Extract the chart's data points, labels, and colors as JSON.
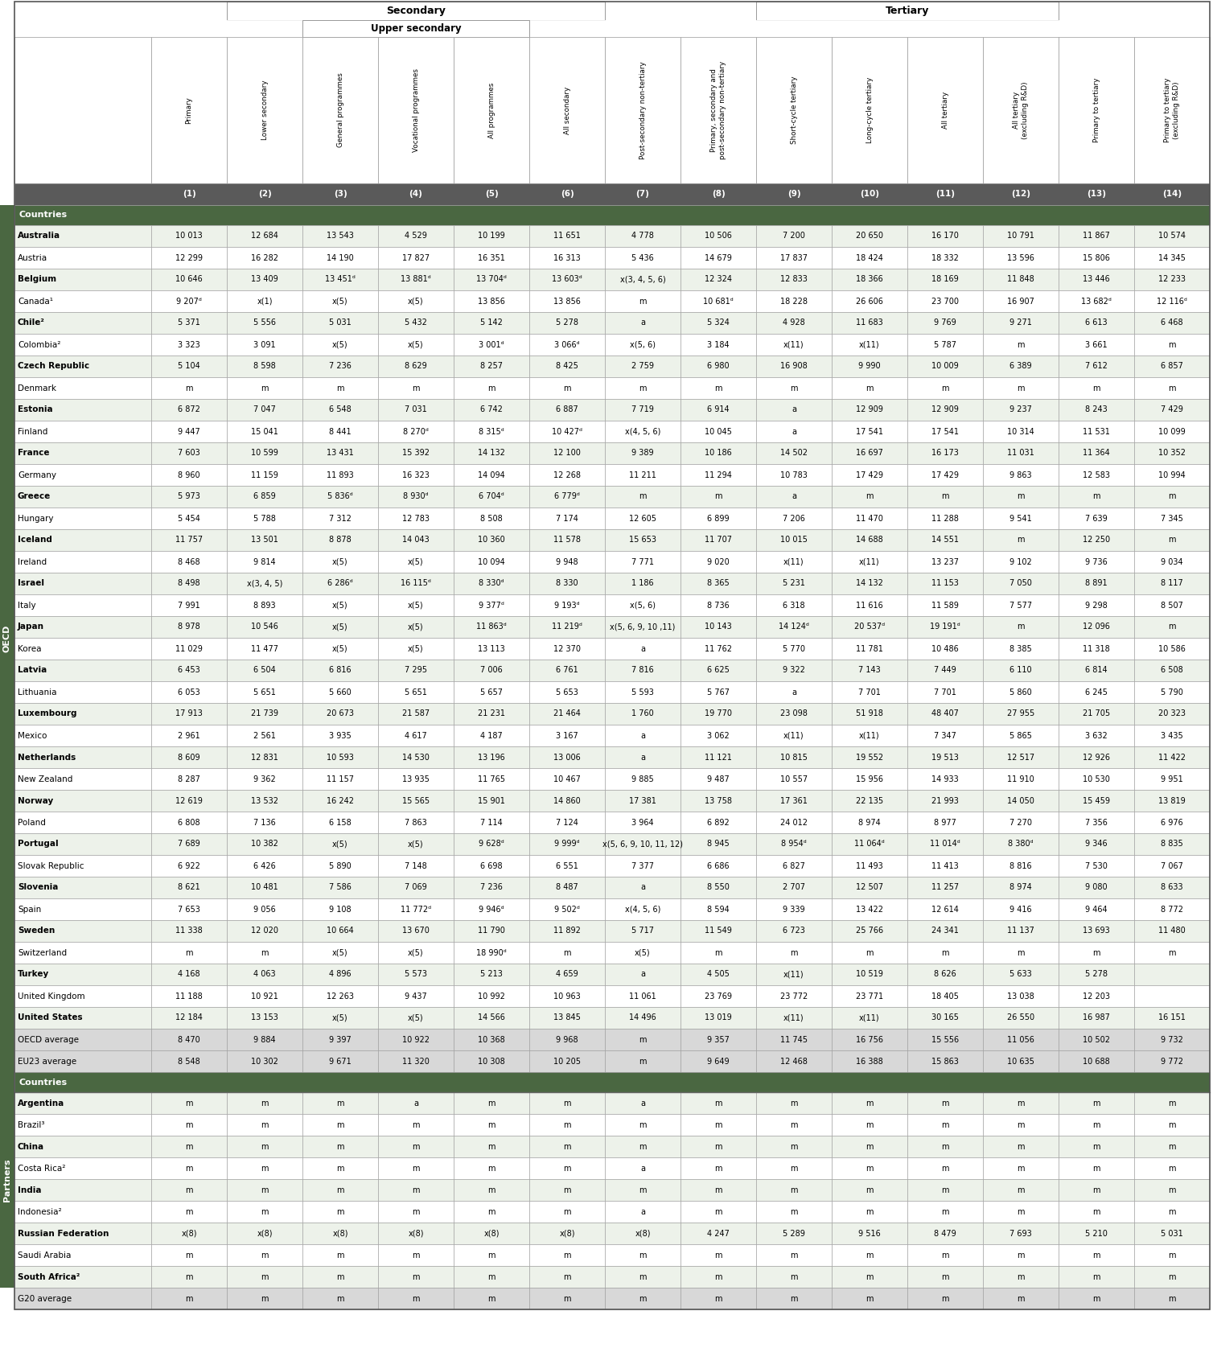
{
  "col_headers_rotated": [
    "Primary",
    "Lower secondary",
    "General programmes",
    "Vocational programmes",
    "All programmes",
    "All secondary",
    "Post-secondary non-tertiary",
    "Primary, secondary and\npost-secondary non-tertiary",
    "Short-cycle tertiary",
    "Long-cycle tertiary",
    "All tertiary",
    "All tertiary\n(excluding R&D)",
    "Primary to tertiary",
    "Primary to tertiary\n(excluding R&D)"
  ],
  "col_nums": [
    "(1)",
    "(2)",
    "(3)",
    "(4)",
    "(5)",
    "(6)",
    "(7)",
    "(8)",
    "(9)",
    "(10)",
    "(11)",
    "(12)",
    "(13)",
    "(14)"
  ],
  "oecd_rows": [
    [
      "Australia",
      "10 013",
      "12 684",
      "13 543",
      "4 529",
      "10 199",
      "11 651",
      "4 778",
      "10 506",
      "7 200",
      "20 650",
      "16 170",
      "10 791",
      "11 867",
      "10 574"
    ],
    [
      "Austria",
      "12 299",
      "16 282",
      "14 190",
      "17 827",
      "16 351",
      "16 313",
      "5 436",
      "14 679",
      "17 837",
      "18 424",
      "18 332",
      "13 596",
      "15 806",
      "14 345"
    ],
    [
      "Belgium",
      "10 646",
      "13 409",
      "13 451ᵈ",
      "13 881ᵈ",
      "13 704ᵈ",
      "13 603ᵈ",
      "x(3, 4, 5, 6)",
      "12 324",
      "12 833",
      "18 366",
      "18 169",
      "11 848",
      "13 446",
      "12 233"
    ],
    [
      "Canada¹",
      "9 207ᵈ",
      "x(1)",
      "x(5)",
      "x(5)",
      "13 856",
      "13 856",
      "m",
      "10 681ᵈ",
      "18 228",
      "26 606",
      "23 700",
      "16 907",
      "13 682ᵈ",
      "12 116ᵈ"
    ],
    [
      "Chile²",
      "5 371",
      "5 556",
      "5 031",
      "5 432",
      "5 142",
      "5 278",
      "a",
      "5 324",
      "4 928",
      "11 683",
      "9 769",
      "9 271",
      "6 613",
      "6 468"
    ],
    [
      "Colombia²",
      "3 323",
      "3 091",
      "x(5)",
      "x(5)",
      "3 001ᵈ",
      "3 066ᵈ",
      "x(5, 6)",
      "3 184",
      "x(11)",
      "x(11)",
      "5 787",
      "m",
      "3 661",
      "m"
    ],
    [
      "Czech Republic",
      "5 104",
      "8 598",
      "7 236",
      "8 629",
      "8 257",
      "8 425",
      "2 759",
      "6 980",
      "16 908",
      "9 990",
      "10 009",
      "6 389",
      "7 612",
      "6 857"
    ],
    [
      "Denmark",
      "m",
      "m",
      "m",
      "m",
      "m",
      "m",
      "m",
      "m",
      "m",
      "m",
      "m",
      "m",
      "m",
      "m"
    ],
    [
      "Estonia",
      "6 872",
      "7 047",
      "6 548",
      "7 031",
      "6 742",
      "6 887",
      "7 719",
      "6 914",
      "a",
      "12 909",
      "12 909",
      "9 237",
      "8 243",
      "7 429"
    ],
    [
      "Finland",
      "9 447",
      "15 041",
      "8 441",
      "8 270ᵈ",
      "8 315ᵈ",
      "10 427ᵈ",
      "x(4, 5, 6)",
      "10 045",
      "a",
      "17 541",
      "17 541",
      "10 314",
      "11 531",
      "10 099"
    ],
    [
      "France",
      "7 603",
      "10 599",
      "13 431",
      "15 392",
      "14 132",
      "12 100",
      "9 389",
      "10 186",
      "14 502",
      "16 697",
      "16 173",
      "11 031",
      "11 364",
      "10 352"
    ],
    [
      "Germany",
      "8 960",
      "11 159",
      "11 893",
      "16 323",
      "14 094",
      "12 268",
      "11 211",
      "11 294",
      "10 783",
      "17 429",
      "17 429",
      "9 863",
      "12 583",
      "10 994"
    ],
    [
      "Greece",
      "5 973",
      "6 859",
      "5 836ᵈ",
      "8 930ᵈ",
      "6 704ᵈ",
      "6 779ᵈ",
      "m",
      "m",
      "a",
      "m",
      "m",
      "m",
      "m",
      "m"
    ],
    [
      "Hungary",
      "5 454",
      "5 788",
      "7 312",
      "12 783",
      "8 508",
      "7 174",
      "12 605",
      "6 899",
      "7 206",
      "11 470",
      "11 288",
      "9 541",
      "7 639",
      "7 345"
    ],
    [
      "Iceland",
      "11 757",
      "13 501",
      "8 878",
      "14 043",
      "10 360",
      "11 578",
      "15 653",
      "11 707",
      "10 015",
      "14 688",
      "14 551",
      "m",
      "12 250",
      "m"
    ],
    [
      "Ireland",
      "8 468",
      "9 814",
      "x(5)",
      "x(5)",
      "10 094",
      "9 948",
      "7 771",
      "9 020",
      "x(11)",
      "x(11)",
      "13 237",
      "9 102",
      "9 736",
      "9 034"
    ],
    [
      "Israel",
      "8 498",
      "x(3, 4, 5)",
      "6 286ᵈ",
      "16 115ᵈ",
      "8 330ᵈ",
      "8 330",
      "1 186",
      "8 365",
      "5 231",
      "14 132",
      "11 153",
      "7 050",
      "8 891",
      "8 117"
    ],
    [
      "Italy",
      "7 991",
      "8 893",
      "x(5)",
      "x(5)",
      "9 377ᵈ",
      "9 193ᵈ",
      "x(5, 6)",
      "8 736",
      "6 318",
      "11 616",
      "11 589",
      "7 577",
      "9 298",
      "8 507"
    ],
    [
      "Japan",
      "8 978",
      "10 546",
      "x(5)",
      "x(5)",
      "11 863ᵈ",
      "11 219ᵈ",
      "x(5, 6, 9, 10 ,11)",
      "10 143",
      "14 124ᵈ",
      "20 537ᵈ",
      "19 191ᵈ",
      "m",
      "12 096",
      "m"
    ],
    [
      "Korea",
      "11 029",
      "11 477",
      "x(5)",
      "x(5)",
      "13 113",
      "12 370",
      "a",
      "11 762",
      "5 770",
      "11 781",
      "10 486",
      "8 385",
      "11 318",
      "10 586"
    ],
    [
      "Latvia",
      "6 453",
      "6 504",
      "6 816",
      "7 295",
      "7 006",
      "6 761",
      "7 816",
      "6 625",
      "9 322",
      "7 143",
      "7 449",
      "6 110",
      "6 814",
      "6 508"
    ],
    [
      "Lithuania",
      "6 053",
      "5 651",
      "5 660",
      "5 651",
      "5 657",
      "5 653",
      "5 593",
      "5 767",
      "a",
      "7 701",
      "7 701",
      "5 860",
      "6 245",
      "5 790"
    ],
    [
      "Luxembourg",
      "17 913",
      "21 739",
      "20 673",
      "21 587",
      "21 231",
      "21 464",
      "1 760",
      "19 770",
      "23 098",
      "51 918",
      "48 407",
      "27 955",
      "21 705",
      "20 323"
    ],
    [
      "Mexico",
      "2 961",
      "2 561",
      "3 935",
      "4 617",
      "4 187",
      "3 167",
      "a",
      "3 062",
      "x(11)",
      "x(11)",
      "7 347",
      "5 865",
      "3 632",
      "3 435"
    ],
    [
      "Netherlands",
      "8 609",
      "12 831",
      "10 593",
      "14 530",
      "13 196",
      "13 006",
      "a",
      "11 121",
      "10 815",
      "19 552",
      "19 513",
      "12 517",
      "12 926",
      "11 422"
    ],
    [
      "New Zealand",
      "8 287",
      "9 362",
      "11 157",
      "13 935",
      "11 765",
      "10 467",
      "9 885",
      "9 487",
      "10 557",
      "15 956",
      "14 933",
      "11 910",
      "10 530",
      "9 951"
    ],
    [
      "Norway",
      "12 619",
      "13 532",
      "16 242",
      "15 565",
      "15 901",
      "14 860",
      "17 381",
      "13 758",
      "17 361",
      "22 135",
      "21 993",
      "14 050",
      "15 459",
      "13 819"
    ],
    [
      "Poland",
      "6 808",
      "7 136",
      "6 158",
      "7 863",
      "7 114",
      "7 124",
      "3 964",
      "6 892",
      "24 012",
      "8 974",
      "8 977",
      "7 270",
      "7 356",
      "6 976"
    ],
    [
      "Portugal",
      "7 689",
      "10 382",
      "x(5)",
      "x(5)",
      "9 628ᵈ",
      "9 999ᵈ",
      "x(5, 6, 9, 10, 11, 12)",
      "8 945",
      "8 954ᵈ",
      "11 064ᵈ",
      "11 014ᵈ",
      "8 380ᵈ",
      "9 346",
      "8 835"
    ],
    [
      "Slovak Republic",
      "6 922",
      "6 426",
      "5 890",
      "7 148",
      "6 698",
      "6 551",
      "7 377",
      "6 686",
      "6 827",
      "11 493",
      "11 413",
      "8 816",
      "7 530",
      "7 067"
    ],
    [
      "Slovenia",
      "8 621",
      "10 481",
      "7 586",
      "7 069",
      "7 236",
      "8 487",
      "a",
      "8 550",
      "2 707",
      "12 507",
      "11 257",
      "8 974",
      "9 080",
      "8 633"
    ],
    [
      "Spain",
      "7 653",
      "9 056",
      "9 108",
      "11 772ᵈ",
      "9 946ᵈ",
      "9 502ᵈ",
      "x(4, 5, 6)",
      "8 594",
      "9 339",
      "13 422",
      "12 614",
      "9 416",
      "9 464",
      "8 772"
    ],
    [
      "Sweden",
      "11 338",
      "12 020",
      "10 664",
      "13 670",
      "11 790",
      "11 892",
      "5 717",
      "11 549",
      "6 723",
      "25 766",
      "24 341",
      "11 137",
      "13 693",
      "11 480"
    ],
    [
      "Switzerland",
      "m",
      "m",
      "x(5)",
      "x(5)",
      "18 990ᵈ",
      "m",
      "x(5)",
      "m",
      "m",
      "m",
      "m",
      "m",
      "m",
      "m"
    ],
    [
      "Turkey",
      "4 168",
      "4 063",
      "4 896",
      "5 573",
      "5 213",
      "4 659",
      "a",
      "4 505",
      "x(11)",
      "10 519",
      "8 626",
      "5 633",
      "5 278",
      ""
    ],
    [
      "United Kingdom",
      "11 188",
      "10 921",
      "12 263",
      "9 437",
      "10 992",
      "10 963",
      "11 061",
      "23 769",
      "23 772",
      "23 771",
      "18 405",
      "13 038",
      "12 203",
      ""
    ],
    [
      "United States",
      "12 184",
      "13 153",
      "x(5)",
      "x(5)",
      "14 566",
      "13 845",
      "14 496",
      "13 019",
      "x(11)",
      "x(11)",
      "30 165",
      "26 550",
      "16 987",
      "16 151"
    ]
  ],
  "avg_rows": [
    [
      "OECD average",
      "8 470",
      "9 884",
      "9 397",
      "10 922",
      "10 368",
      "9 968",
      "m",
      "9 357",
      "11 745",
      "16 756",
      "15 556",
      "11 056",
      "10 502",
      "9 732"
    ],
    [
      "EU23 average",
      "8 548",
      "10 302",
      "9 671",
      "11 320",
      "10 308",
      "10 205",
      "m",
      "9 649",
      "12 468",
      "16 388",
      "15 863",
      "10 635",
      "10 688",
      "9 772"
    ]
  ],
  "partner_rows": [
    [
      "Argentina",
      "m",
      "m",
      "m",
      "a",
      "m",
      "m",
      "a",
      "m",
      "m",
      "m",
      "m",
      "m",
      "m",
      "m"
    ],
    [
      "Brazil³",
      "m",
      "m",
      "m",
      "m",
      "m",
      "m",
      "m",
      "m",
      "m",
      "m",
      "m",
      "m",
      "m",
      "m"
    ],
    [
      "China",
      "m",
      "m",
      "m",
      "m",
      "m",
      "m",
      "m",
      "m",
      "m",
      "m",
      "m",
      "m",
      "m",
      "m"
    ],
    [
      "Costa Rica²",
      "m",
      "m",
      "m",
      "m",
      "m",
      "m",
      "a",
      "m",
      "m",
      "m",
      "m",
      "m",
      "m",
      "m"
    ],
    [
      "India",
      "m",
      "m",
      "m",
      "m",
      "m",
      "m",
      "m",
      "m",
      "m",
      "m",
      "m",
      "m",
      "m",
      "m"
    ],
    [
      "Indonesia²",
      "m",
      "m",
      "m",
      "m",
      "m",
      "m",
      "a",
      "m",
      "m",
      "m",
      "m",
      "m",
      "m",
      "m"
    ],
    [
      "Russian Federation",
      "x(8)",
      "x(8)",
      "x(8)",
      "x(8)",
      "x(8)",
      "x(8)",
      "x(8)",
      "4 247",
      "5 289",
      "9 516",
      "8 479",
      "7 693",
      "5 210",
      "5 031"
    ],
    [
      "Saudi Arabia",
      "m",
      "m",
      "m",
      "m",
      "m",
      "m",
      "m",
      "m",
      "m",
      "m",
      "m",
      "m",
      "m",
      "m"
    ],
    [
      "South Africa²",
      "m",
      "m",
      "m",
      "m",
      "m",
      "m",
      "m",
      "m",
      "m",
      "m",
      "m",
      "m",
      "m",
      "m"
    ]
  ],
  "g20_row": [
    "G20 average",
    "m",
    "m",
    "m",
    "m",
    "m",
    "m",
    "m",
    "m",
    "m",
    "m",
    "m",
    "m",
    "m",
    "m"
  ],
  "colors": {
    "header_bg": "#4a6741",
    "col_num_bg": "#5a5a5a",
    "row_light": "#edf2ea",
    "row_dark": "#ffffff",
    "avg_bg": "#d8d8d8",
    "border": "#999999",
    "side_label_bg": "#4a6741"
  }
}
